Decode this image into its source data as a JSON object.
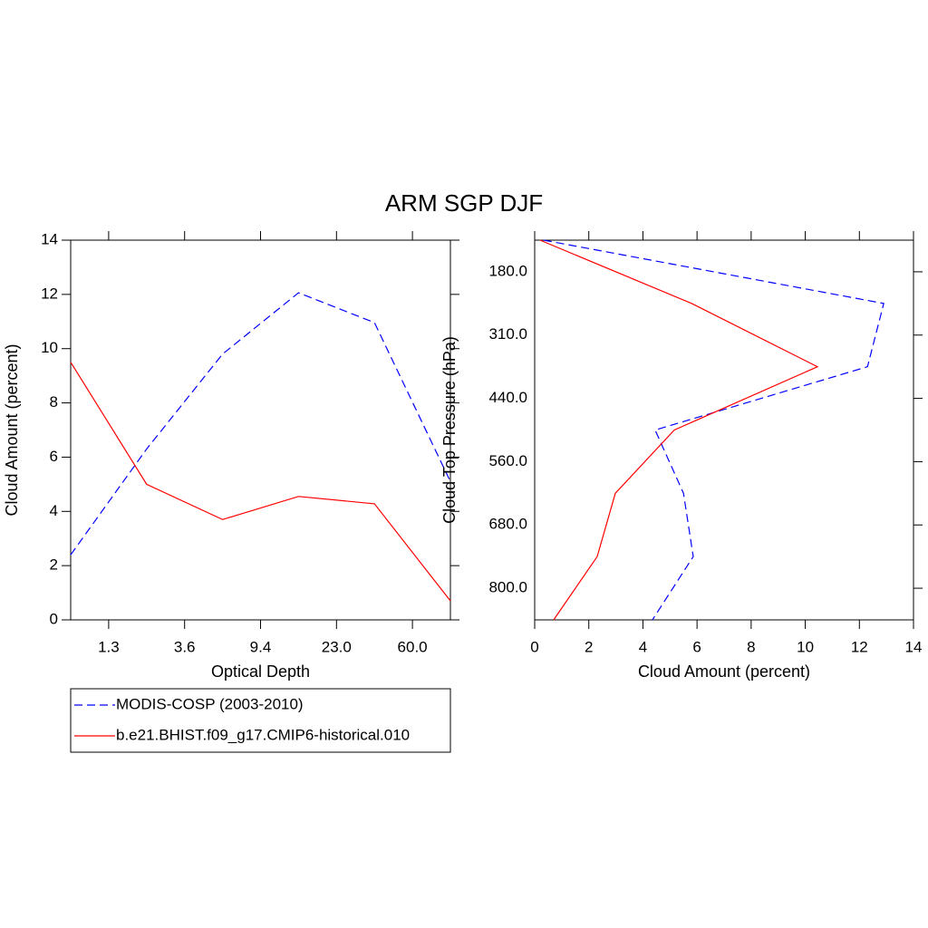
{
  "title": "ARM SGP DJF",
  "chart_data": [
    {
      "type": "line",
      "orientation": "vertical",
      "x_label": "Optical Depth",
      "y_label": "Cloud Amount (percent)",
      "x": [
        0,
        1,
        2,
        3,
        4,
        5
      ],
      "xlim": [
        0,
        5
      ],
      "xticks": [
        {
          "value": 0.5,
          "label": "1.3"
        },
        {
          "value": 1.5,
          "label": "3.6"
        },
        {
          "value": 2.5,
          "label": "9.4"
        },
        {
          "value": 3.5,
          "label": "23.0"
        },
        {
          "value": 4.5,
          "label": "60.0"
        }
      ],
      "ylim": [
        0,
        14
      ],
      "yticks": [
        0,
        2,
        4,
        6,
        8,
        10,
        12,
        14
      ],
      "series": [
        {
          "name": "MODIS-COSP (2003-2010)",
          "color": "#0000ff",
          "dash": true,
          "values": [
            2.4,
            6.3,
            9.8,
            12.06,
            10.96,
            5.1
          ]
        },
        {
          "name": "b.e21.BHIST.f09_g17.CMIP6-historical.010",
          "color": "#ff0000",
          "dash": false,
          "values": [
            9.5,
            5.0,
            3.7,
            4.55,
            4.28,
            0.7
          ]
        }
      ]
    },
    {
      "type": "line",
      "orientation": "horizontal",
      "x_label": "Cloud Amount (percent)",
      "y_label": "Cloud Top Pressure (hPa)",
      "y": [
        0,
        1,
        2,
        3,
        4,
        5,
        6
      ],
      "ylim": [
        6,
        0
      ],
      "yticks": [
        {
          "value": 0.5,
          "label": "180.0"
        },
        {
          "value": 1.5,
          "label": "310.0"
        },
        {
          "value": 2.5,
          "label": "440.0"
        },
        {
          "value": 3.5,
          "label": "560.0"
        },
        {
          "value": 4.5,
          "label": "680.0"
        },
        {
          "value": 5.5,
          "label": "800.0"
        }
      ],
      "xlim": [
        0,
        14
      ],
      "xticks": [
        0,
        2,
        4,
        6,
        8,
        10,
        12,
        14
      ],
      "series": [
        {
          "color": "#0000ff",
          "dash": true,
          "values": [
            0.33,
            12.9,
            12.3,
            4.45,
            5.5,
            5.86,
            4.35
          ]
        },
        {
          "color": "#ff0000",
          "dash": false,
          "values": [
            0.2,
            5.8,
            10.45,
            5.16,
            2.98,
            2.31,
            0.7
          ]
        }
      ]
    }
  ]
}
